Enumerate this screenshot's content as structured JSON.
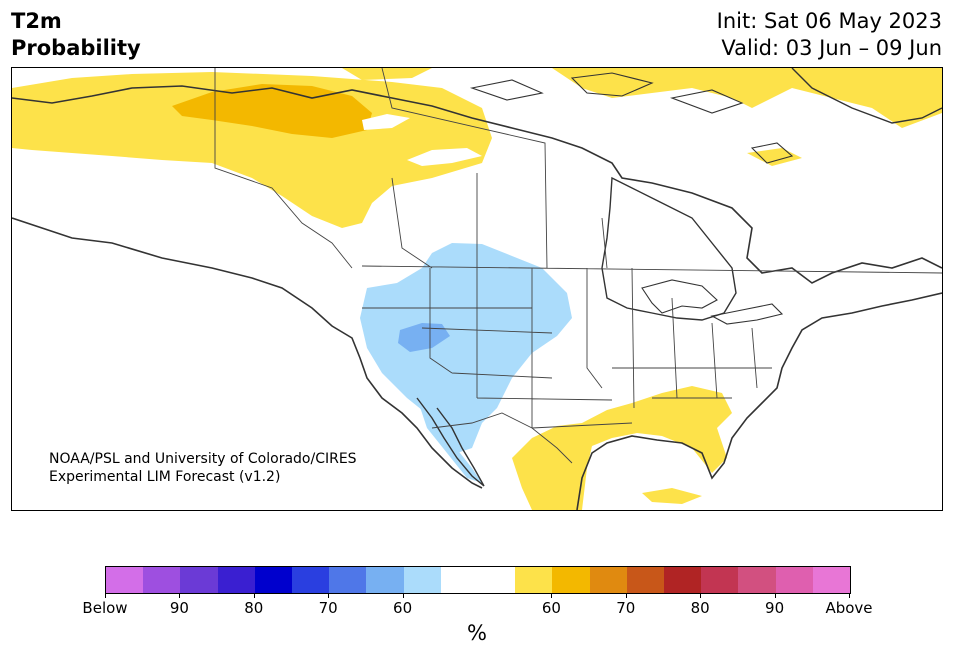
{
  "header": {
    "title_line1": "T2m",
    "title_line2": "Probability",
    "init": "Init: Sat 06 May 2023",
    "valid": "Valid: 03 Jun – 09 Jun"
  },
  "credit": {
    "line1": "NOAA/PSL and University of Colorado/CIRES",
    "line2": "Experimental LIM Forecast (v1.2)"
  },
  "colorbar": {
    "colors": [
      "#d36ee8",
      "#9e4fe0",
      "#6b3ad6",
      "#3a1fd1",
      "#0000cd",
      "#2a3fe0",
      "#4f77e8",
      "#77b0f2",
      "#abdcfb",
      "#ffffff",
      "#ffffff",
      "#fde24a",
      "#f3b800",
      "#e08a10",
      "#c85719",
      "#b02424",
      "#c23552",
      "#d25080",
      "#df5faf",
      "#e876d6"
    ],
    "ticks": [
      "Below",
      "90",
      "80",
      "70",
      "60",
      "60",
      "70",
      "80",
      "90",
      "Above"
    ],
    "unit": "%"
  },
  "map_colors": {
    "light_yellow": "#fde24a",
    "dark_yellow": "#f3b800",
    "light_blue": "#abdcfb",
    "medium_blue": "#77b0f2",
    "land": "#ffffff",
    "border": "#333333"
  }
}
